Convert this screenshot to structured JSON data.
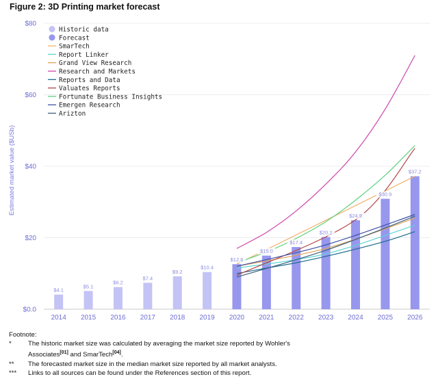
{
  "figure_title": "Figure 2: 3D Printing market forecast",
  "chart_data": {
    "type": "bar",
    "categories": [
      "2014",
      "2015",
      "2016",
      "2017",
      "2018",
      "2019",
      "2020",
      "2021",
      "2022",
      "2023",
      "2024",
      "2025",
      "2026"
    ],
    "ylabel": "Estimated market value ($USb)",
    "ylim": [
      0,
      80
    ],
    "yticks": [
      0,
      20,
      40,
      60,
      80
    ],
    "ytick_labels": [
      "$0.0",
      "$20",
      "$40",
      "$60",
      "$80"
    ],
    "grid": true,
    "legend_position": "top-left",
    "bars": [
      {
        "year": "2014",
        "value": 4.1,
        "label": "$4.1",
        "kind": "historic"
      },
      {
        "year": "2015",
        "value": 5.1,
        "label": "$5.1",
        "kind": "historic"
      },
      {
        "year": "2016",
        "value": 6.2,
        "label": "$6.2",
        "kind": "historic"
      },
      {
        "year": "2017",
        "value": 7.4,
        "label": "$7.4",
        "kind": "historic"
      },
      {
        "year": "2018",
        "value": 9.2,
        "label": "$9.2",
        "kind": "historic"
      },
      {
        "year": "2019",
        "value": 10.4,
        "label": "$10.4",
        "kind": "historic"
      },
      {
        "year": "2020",
        "value": 12.6,
        "label": "$12.6",
        "kind": "forecast"
      },
      {
        "year": "2021",
        "value": 15.0,
        "label": "$15.0",
        "kind": "forecast"
      },
      {
        "year": "2022",
        "value": 17.4,
        "label": "$17.4",
        "kind": "forecast"
      },
      {
        "year": "2023",
        "value": 20.2,
        "label": "$20.2",
        "kind": "forecast"
      },
      {
        "year": "2024",
        "value": 24.9,
        "label": "$24.9",
        "kind": "forecast"
      },
      {
        "year": "2025",
        "value": 30.9,
        "label": "$30.9",
        "kind": "forecast"
      },
      {
        "year": "2026",
        "value": 37.2,
        "label": "$37.2",
        "kind": "forecast"
      }
    ],
    "legend_bars": [
      {
        "name": "Historic data",
        "color": "#c4c3f5"
      },
      {
        "name": "Forecast",
        "color": "#9797ee"
      }
    ],
    "series": [
      {
        "name": "SmarTech",
        "color": "#f2b26b",
        "x": [
          "2020",
          "2026"
        ],
        "y": [
          12.6,
          37.2
        ]
      },
      {
        "name": "Report Linker",
        "color": "#5fd3d3",
        "x": [
          "2020",
          "2023",
          "2026"
        ],
        "y": [
          11.5,
          15.5,
          23.5
        ]
      },
      {
        "name": "Grand View Research",
        "color": "#e0a255",
        "x": [
          "2020",
          "2023",
          "2026"
        ],
        "y": [
          12.0,
          17.0,
          25.5
        ]
      },
      {
        "name": "Research and Markets",
        "color": "#cc44aa",
        "x": [
          "2020",
          "2021",
          "2022",
          "2023",
          "2024",
          "2025",
          "2026"
        ],
        "y": [
          17.0,
          21.5,
          27.5,
          35.0,
          44.0,
          56.0,
          71.0
        ]
      },
      {
        "name": "Reports and Data",
        "color": "#1d6a8c",
        "x": [
          "2020",
          "2021",
          "2022",
          "2023",
          "2024",
          "2025",
          "2026"
        ],
        "y": [
          10.0,
          11.5,
          13.0,
          14.8,
          16.8,
          19.0,
          21.7
        ]
      },
      {
        "name": "Valuates Reports",
        "color": "#b04545",
        "x": [
          "2020",
          "2024",
          "2026"
        ],
        "y": [
          9.5,
          25.0,
          45.0
        ]
      },
      {
        "name": "Fortunate Business Insights",
        "color": "#5cd07f",
        "x": [
          "2020",
          "2021",
          "2022",
          "2023",
          "2024",
          "2025",
          "2026"
        ],
        "y": [
          13.0,
          16.0,
          19.8,
          24.5,
          30.5,
          37.5,
          45.8
        ]
      },
      {
        "name": "Emergen Research",
        "color": "#3d4fa3",
        "x": [
          "2020",
          "2023",
          "2026"
        ],
        "y": [
          12.0,
          18.0,
          26.5
        ]
      },
      {
        "name": "Arizton",
        "color": "#3a5f7a",
        "x": [
          "2020",
          "2023",
          "2026"
        ],
        "y": [
          9.0,
          16.5,
          26.0
        ]
      }
    ]
  },
  "footnote": {
    "heading": "Footnote:",
    "items": [
      {
        "mark": "*",
        "text": "The historic market size was calculated by averaging the market size reported by Wohler's",
        "cont_before": "Associates",
        "cont_sup1": "[01]",
        "cont_mid": " and SmarTech",
        "cont_sup2": "[04]",
        "cont_after": "."
      },
      {
        "mark": "**",
        "text": "The forecasted market size in the median market size reported by all market analysts."
      },
      {
        "mark": "***",
        "text": "Links to all sources can be found under the References section of this report."
      }
    ]
  }
}
